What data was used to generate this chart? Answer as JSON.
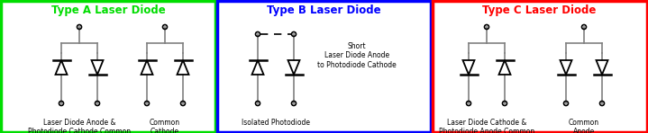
{
  "title_a": "Type A Laser Diode",
  "title_b": "Type B Laser Diode",
  "title_c": "Type C Laser Diode",
  "color_a": "#00dd00",
  "color_b": "#0000ff",
  "color_c": "#ff0000",
  "bg_color": "#ffffff",
  "diode_color": "#000000",
  "wire_color": "#808080",
  "label_a1": "Laser Diode Anode &\nPhotodiode Cathode Common",
  "label_a2": "Common\nCathode",
  "label_b1": "Isolated Photodiode",
  "label_b2": "Short\nLaser Diode Anode\nto Photodiode Cathode",
  "label_c1": "Laser Diode Cathode &\nPhotodiode Anode Common",
  "label_c2": "Common\nAnode",
  "fig_w": 7.19,
  "fig_h": 1.48,
  "dpi": 100
}
